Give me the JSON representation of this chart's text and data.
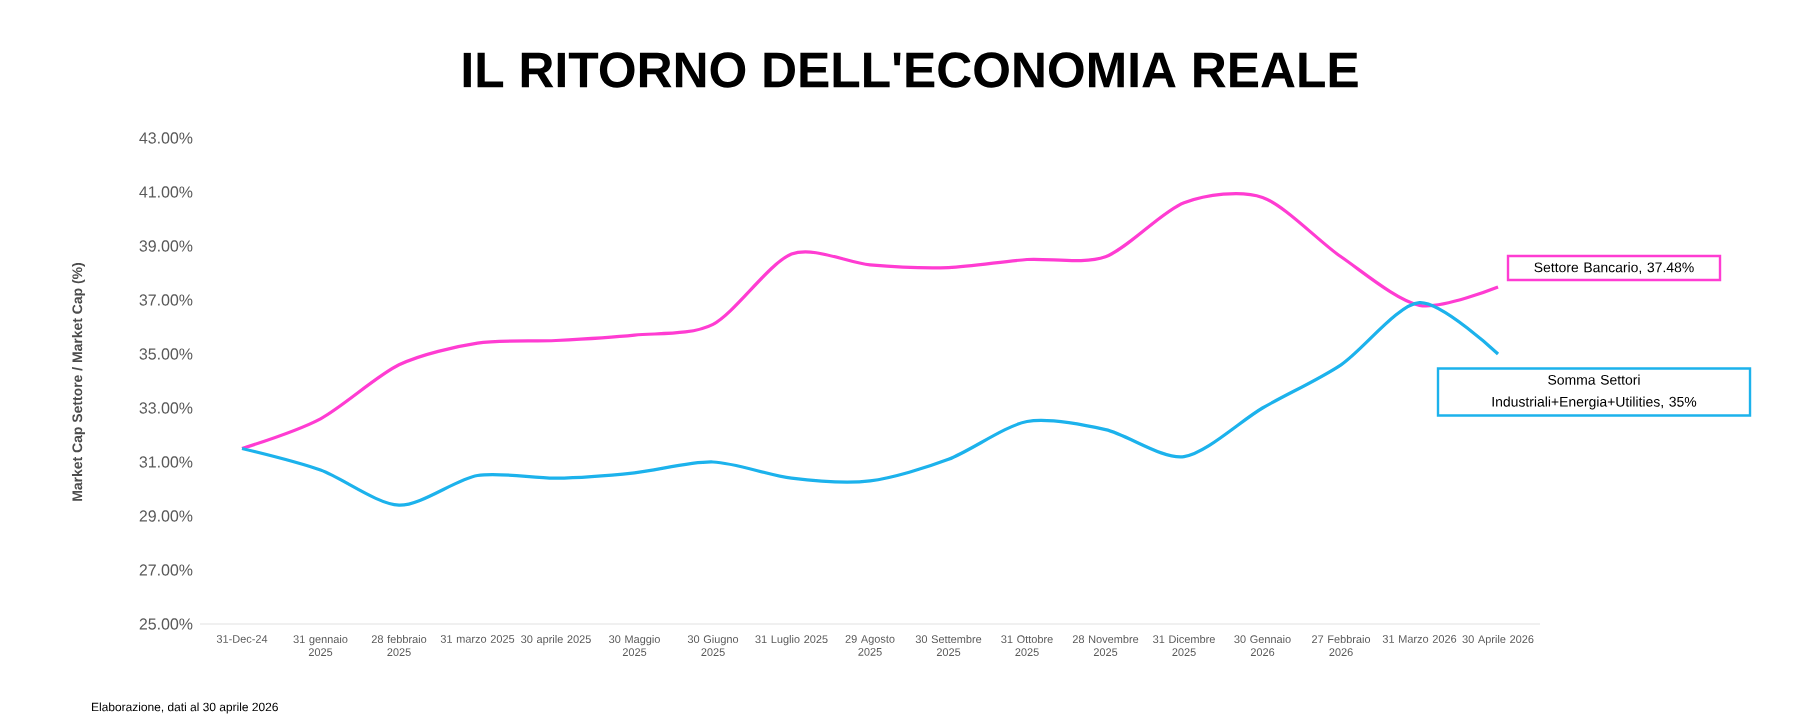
{
  "chart_data": {
    "type": "line",
    "title": "IL RITORNO DELL'ECONOMIA REALE",
    "ylabel": "Market Cap Settore / Market Cap (%)",
    "categories": [
      "31-Dec-24",
      "31 gennaio 2025",
      "28 febbraio 2025",
      "31 marzo 2025",
      "30 aprile 2025",
      "30 Maggio 2025",
      "30 Giugno 2025",
      "31 Luglio 2025",
      "29 Agosto 2025",
      "30 Settembre 2025",
      "31 Ottobre 2025",
      "28 Novembre 2025",
      "31 Dicembre 2025",
      "30 Gennaio 2026",
      "27 Febbraio 2026",
      "31 Marzo 2026",
      "30 Aprile 2026"
    ],
    "series": [
      {
        "name": "Settore Bancario, 37.48%",
        "color": "#ff3cd2",
        "values": [
          31.5,
          32.6,
          34.6,
          35.4,
          35.5,
          35.7,
          36.1,
          38.7,
          38.3,
          38.2,
          38.5,
          38.6,
          40.6,
          40.8,
          38.6,
          36.8,
          37.48
        ]
      },
      {
        "name": "Somma Settori Industriali+Energia+Utilities, 35%",
        "color": "#1cb2ec",
        "values": [
          31.5,
          30.7,
          29.4,
          30.5,
          30.4,
          30.6,
          31.0,
          30.4,
          30.3,
          31.1,
          32.5,
          32.2,
          31.2,
          33.0,
          34.6,
          36.9,
          35
        ]
      }
    ],
    "ylim": [
      25,
      43
    ],
    "yticks": [
      {
        "value": 25,
        "label": "25.00%"
      },
      {
        "value": 27,
        "label": "27.00%"
      },
      {
        "value": 29,
        "label": "29.00%"
      },
      {
        "value": 31,
        "label": "31.00%"
      },
      {
        "value": 33,
        "label": "33.00%"
      },
      {
        "value": 35,
        "label": "35.00%"
      },
      {
        "value": 37,
        "label": "37.00%"
      },
      {
        "value": 39,
        "label": "39.00%"
      },
      {
        "value": 41,
        "label": "41.00%"
      },
      {
        "value": 43,
        "label": "43.00%"
      }
    ],
    "annotations": [
      "Elaborazione, dati al 30 aprile 2026"
    ],
    "legend": false,
    "grid": false,
    "marker": "none"
  }
}
